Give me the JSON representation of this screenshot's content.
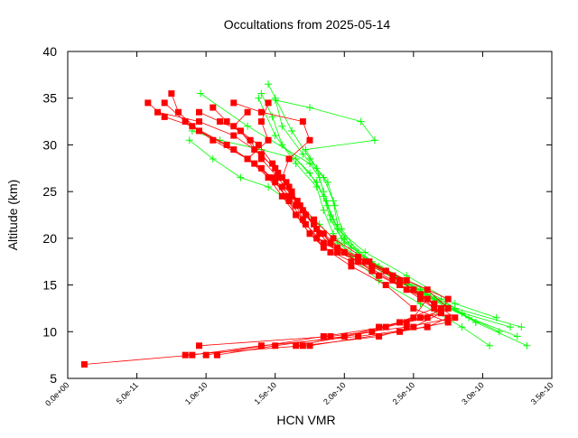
{
  "chart_data": {
    "type": "line",
    "title": "Occultations from 2025-05-14",
    "xlabel": "HCN VMR",
    "ylabel": "Altitude (km)",
    "xlim": [
      0,
      3.5e-10
    ],
    "ylim": [
      5,
      40
    ],
    "x_ticks": [
      "0.0e+00",
      "5.0e-11",
      "1.0e-10",
      "1.5e-10",
      "2.0e-10",
      "2.5e-10",
      "3.0e-10",
      "3.5e-10"
    ],
    "y_ticks": [
      "5",
      "10",
      "15",
      "20",
      "25",
      "30",
      "35",
      "40"
    ],
    "grid": false,
    "legend": "none",
    "series": [
      {
        "color": "#00ff00",
        "marker": "plus",
        "profiles": [
          [
            [
              3.28e-10,
              10.5
            ],
            [
              2.8e-10,
              12.5
            ],
            [
              2.55e-10,
              14.5
            ],
            [
              2.25e-10,
              17.0
            ],
            [
              2e-10,
              19.5
            ],
            [
              1.9e-10,
              22.0
            ],
            [
              1.85e-10,
              24.5
            ],
            [
              1.75e-10,
              27.0
            ],
            [
              1.55e-10,
              30.0
            ],
            [
              1.48e-10,
              33.0
            ],
            [
              1.4e-10,
              35.5
            ]
          ],
          [
            [
              3.25e-10,
              9.5
            ],
            [
              2.9e-10,
              11.5
            ],
            [
              2.6e-10,
              14.0
            ],
            [
              2.3e-10,
              16.5
            ],
            [
              2.05e-10,
              19.0
            ],
            [
              1.95e-10,
              21.5
            ],
            [
              1.92e-10,
              24.0
            ],
            [
              1.85e-10,
              26.5
            ],
            [
              1.7e-10,
              29.0
            ],
            [
              1.55e-10,
              32.0
            ],
            [
              1.5e-10,
              35.0
            ]
          ],
          [
            [
              3.32e-10,
              8.5
            ],
            [
              2.95e-10,
              11.0
            ],
            [
              2.65e-10,
              13.5
            ],
            [
              2.35e-10,
              16.0
            ],
            [
              2.1e-10,
              18.5
            ],
            [
              1.98e-10,
              21.0
            ],
            [
              1.93e-10,
              23.5
            ],
            [
              1.88e-10,
              26.0
            ],
            [
              1.75e-10,
              28.5
            ],
            [
              1.62e-10,
              31.5
            ],
            [
              1.45e-10,
              36.5
            ]
          ],
          [
            [
              3.05e-10,
              8.5
            ],
            [
              2.85e-10,
              10.5
            ],
            [
              2.55e-10,
              13.0
            ],
            [
              2.25e-10,
              15.5
            ],
            [
              2.05e-10,
              18.0
            ],
            [
              1.92e-10,
              20.5
            ],
            [
              1.85e-10,
              23.0
            ],
            [
              1.8e-10,
              25.5
            ],
            [
              1.65e-10,
              28.0
            ],
            [
              1.5e-10,
              31.0
            ],
            [
              1.38e-10,
              35.0
            ]
          ],
          [
            [
              2.95e-10,
              11.0
            ],
            [
              2.7e-10,
              13.5
            ],
            [
              2.45e-10,
              15.5
            ],
            [
              2.2e-10,
              17.5
            ],
            [
              2e-10,
              20.0
            ],
            [
              1.9e-10,
              22.5
            ],
            [
              1.85e-10,
              25.0
            ],
            [
              1.8e-10,
              27.5
            ],
            [
              1.72e-10,
              29.5
            ],
            [
              2.22e-10,
              30.5
            ],
            [
              2.12e-10,
              32.5
            ],
            [
              1.75e-10,
              34.0
            ],
            [
              1.5e-10,
              34.8
            ]
          ],
          [
            [
              3.12e-10,
              10.0
            ],
            [
              2.75e-10,
              12.5
            ],
            [
              2.45e-10,
              15.0
            ],
            [
              2.18e-10,
              17.5
            ],
            [
              1.98e-10,
              20.0
            ],
            [
              1.92e-10,
              22.0
            ],
            [
              1.87e-10,
              24.0
            ],
            [
              1.82e-10,
              26.5
            ],
            [
              1.75e-10,
              28.0
            ],
            [
              1.3e-10,
              32.0
            ],
            [
              9.6e-11,
              35.5
            ]
          ],
          [
            [
              3.1e-10,
              11.5
            ],
            [
              2.8e-10,
              13.0
            ],
            [
              2.45e-10,
              16.0
            ],
            [
              2.15e-10,
              18.5
            ],
            [
              1.95e-10,
              21.0
            ],
            [
              1.88e-10,
              23.5
            ],
            [
              1.8e-10,
              26.0
            ],
            [
              1.65e-10,
              28.5
            ],
            [
              1.4e-10,
              29.5
            ],
            [
              1.1e-10,
              30.5
            ],
            [
              9e-11,
              31.5
            ]
          ],
          [
            [
              3.2e-10,
              10.5
            ],
            [
              2.85e-10,
              12.0
            ],
            [
              2.5e-10,
              14.5
            ],
            [
              2.2e-10,
              17.0
            ],
            [
              1.95e-10,
              19.5
            ],
            [
              1.82e-10,
              21.5
            ],
            [
              1.65e-10,
              23.5
            ],
            [
              1.45e-10,
              25.5
            ],
            [
              1.25e-10,
              26.5
            ],
            [
              1.05e-10,
              28.5
            ],
            [
              8.8e-11,
              30.5
            ]
          ]
        ]
      },
      {
        "color": "#ff0000",
        "marker": "square",
        "profiles": [
          [
            [
              1.2e-11,
              6.5
            ],
            [
              9e-11,
              7.5
            ],
            [
              1.4e-10,
              8.5
            ],
            [
              2.1e-10,
              9.5
            ],
            [
              2.6e-10,
              10.5
            ],
            [
              2.75e-10,
              11.5
            ],
            [
              2.55e-10,
              13.5
            ],
            [
              2.35e-10,
              15.5
            ],
            [
              2.1e-10,
              17.5
            ],
            [
              1.85e-10,
              19.5
            ],
            [
              1.72e-10,
              21.5
            ],
            [
              1.65e-10,
              23.5
            ],
            [
              1.55e-10,
              25.5
            ],
            [
              1.4e-10,
              27.5
            ],
            [
              1.2e-10,
              29.5
            ],
            [
              9.5e-11,
              31.5
            ],
            [
              8e-11,
              33.5
            ],
            [
              7.5e-11,
              35.5
            ]
          ],
          [
            [
              8.5e-11,
              7.5
            ],
            [
              1.7e-10,
              8.5
            ],
            [
              2.25e-10,
              9.5
            ],
            [
              2.5e-10,
              10.5
            ],
            [
              2.7e-10,
              12.0
            ],
            [
              2.6e-10,
              13.5
            ],
            [
              2.4e-10,
              15.0
            ],
            [
              2.2e-10,
              16.5
            ],
            [
              2e-10,
              18.5
            ],
            [
              1.8e-10,
              20.0
            ],
            [
              1.7e-10,
              22.0
            ],
            [
              1.6e-10,
              24.0
            ],
            [
              1.5e-10,
              26.0
            ],
            [
              1.35e-10,
              28.0
            ],
            [
              1.15e-10,
              30.0
            ],
            [
              9e-11,
              32.0
            ],
            [
              7e-11,
              33.0
            ],
            [
              5.8e-11,
              34.5
            ]
          ],
          [
            [
              9.5e-11,
              8.5
            ],
            [
              1.9e-10,
              9.5
            ],
            [
              2.45e-10,
              10.5
            ],
            [
              2.8e-10,
              11.5
            ],
            [
              2.65e-10,
              13.0
            ],
            [
              2.45e-10,
              14.5
            ],
            [
              2.25e-10,
              16.0
            ],
            [
              2.05e-10,
              17.5
            ],
            [
              1.85e-10,
              19.0
            ],
            [
              1.75e-10,
              20.5
            ],
            [
              1.65e-10,
              22.5
            ],
            [
              1.58e-10,
              24.5
            ],
            [
              1.48e-10,
              26.5
            ],
            [
              1.3e-10,
              28.5
            ],
            [
              1.05e-10,
              30.5
            ],
            [
              8.5e-11,
              32.5
            ],
            [
              7e-11,
              34.5
            ]
          ],
          [
            [
              1e-10,
              7.5
            ],
            [
              1.85e-10,
              9.5
            ],
            [
              2.3e-10,
              10.5
            ],
            [
              2.6e-10,
              11.5
            ],
            [
              2.7e-10,
              12.5
            ],
            [
              2.55e-10,
              14.0
            ],
            [
              2.35e-10,
              16.0
            ],
            [
              2.15e-10,
              17.5
            ],
            [
              1.95e-10,
              19.0
            ],
            [
              1.8e-10,
              21.0
            ],
            [
              1.7e-10,
              23.0
            ],
            [
              1.62e-10,
              25.0
            ],
            [
              1.52e-10,
              27.0
            ],
            [
              1.4e-10,
              29.0
            ],
            [
              1.2e-10,
              31.0
            ],
            [
              9.5e-11,
              32.5
            ],
            [
              6.5e-11,
              33.5
            ]
          ],
          [
            [
              1.08e-10,
              7.5
            ],
            [
              1.5e-10,
              8.5
            ],
            [
              2e-10,
              9.5
            ],
            [
              2.4e-10,
              11.0
            ],
            [
              2.65e-10,
              12.5
            ],
            [
              2.5e-10,
              14.5
            ],
            [
              2.3e-10,
              16.5
            ],
            [
              2.1e-10,
              18.0
            ],
            [
              1.9e-10,
              19.5
            ],
            [
              1.78e-10,
              21.5
            ],
            [
              1.68e-10,
              23.5
            ],
            [
              1.6e-10,
              25.5
            ],
            [
              1.5e-10,
              27.5
            ],
            [
              1.35e-10,
              29.5
            ],
            [
              1.25e-10,
              31.5
            ],
            [
              1.1e-10,
              32.5
            ],
            [
              9.5e-11,
              33.5
            ]
          ],
          [
            [
              1.75e-10,
              8.5
            ],
            [
              2.4e-10,
              10.0
            ],
            [
              2.75e-10,
              11.0
            ],
            [
              2.5e-10,
              12.5
            ],
            [
              2.3e-10,
              15.0
            ],
            [
              2.05e-10,
              17.0
            ],
            [
              1.9e-10,
              18.5
            ],
            [
              1.75e-10,
              20.5
            ],
            [
              1.65e-10,
              22.5
            ],
            [
              1.55e-10,
              24.5
            ],
            [
              1.45e-10,
              26.5
            ],
            [
              1.3e-10,
              28.5
            ],
            [
              1.45e-10,
              30.5
            ],
            [
              1.4e-10,
              32.5
            ],
            [
              1.45e-10,
              34.5
            ]
          ],
          [
            [
              1.65e-10,
              8.5
            ],
            [
              2.2e-10,
              10.0
            ],
            [
              2.5e-10,
              11.5
            ],
            [
              2.6e-10,
              13.5
            ],
            [
              2.4e-10,
              15.5
            ],
            [
              2.2e-10,
              17.0
            ],
            [
              1.95e-10,
              18.5
            ],
            [
              1.82e-10,
              20.5
            ],
            [
              1.72e-10,
              22.5
            ],
            [
              1.62e-10,
              24.5
            ],
            [
              1.55e-10,
              26.5
            ],
            [
              1.6e-10,
              28.5
            ],
            [
              1.75e-10,
              30.5
            ],
            [
              1.7e-10,
              32.5
            ],
            [
              1.4e-10,
              33.5
            ],
            [
              1.2e-10,
              34.5
            ]
          ],
          [
            [
              2.45e-10,
              11.0
            ],
            [
              2.7e-10,
              12.0
            ],
            [
              2.75e-10,
              13.5
            ],
            [
              2.45e-10,
              15.5
            ],
            [
              2.18e-10,
              17.5
            ],
            [
              1.92e-10,
              20.0
            ],
            [
              1.78e-10,
              22.0
            ],
            [
              1.66e-10,
              24.0
            ],
            [
              1.58e-10,
              26.0
            ],
            [
              1.48e-10,
              28.0
            ],
            [
              1.38e-10,
              30.0
            ],
            [
              1.2e-10,
              32.0
            ],
            [
              1.3e-10,
              33.5
            ]
          ],
          [
            [
              2.25e-10,
              10.5
            ],
            [
              2.55e-10,
              11.5
            ],
            [
              2.75e-10,
              12.5
            ],
            [
              2.6e-10,
              14.5
            ],
            [
              2.3e-10,
              16.5
            ],
            [
              2e-10,
              18.5
            ],
            [
              1.85e-10,
              20.5
            ],
            [
              1.72e-10,
              22.5
            ],
            [
              1.62e-10,
              24.5
            ],
            [
              1.52e-10,
              26.5
            ],
            [
              1.4e-10,
              28.5
            ],
            [
              1.32e-10,
              30.5
            ],
            [
              1.15e-10,
              32.5
            ],
            [
              1.05e-10,
              34.0
            ]
          ]
        ]
      }
    ]
  }
}
